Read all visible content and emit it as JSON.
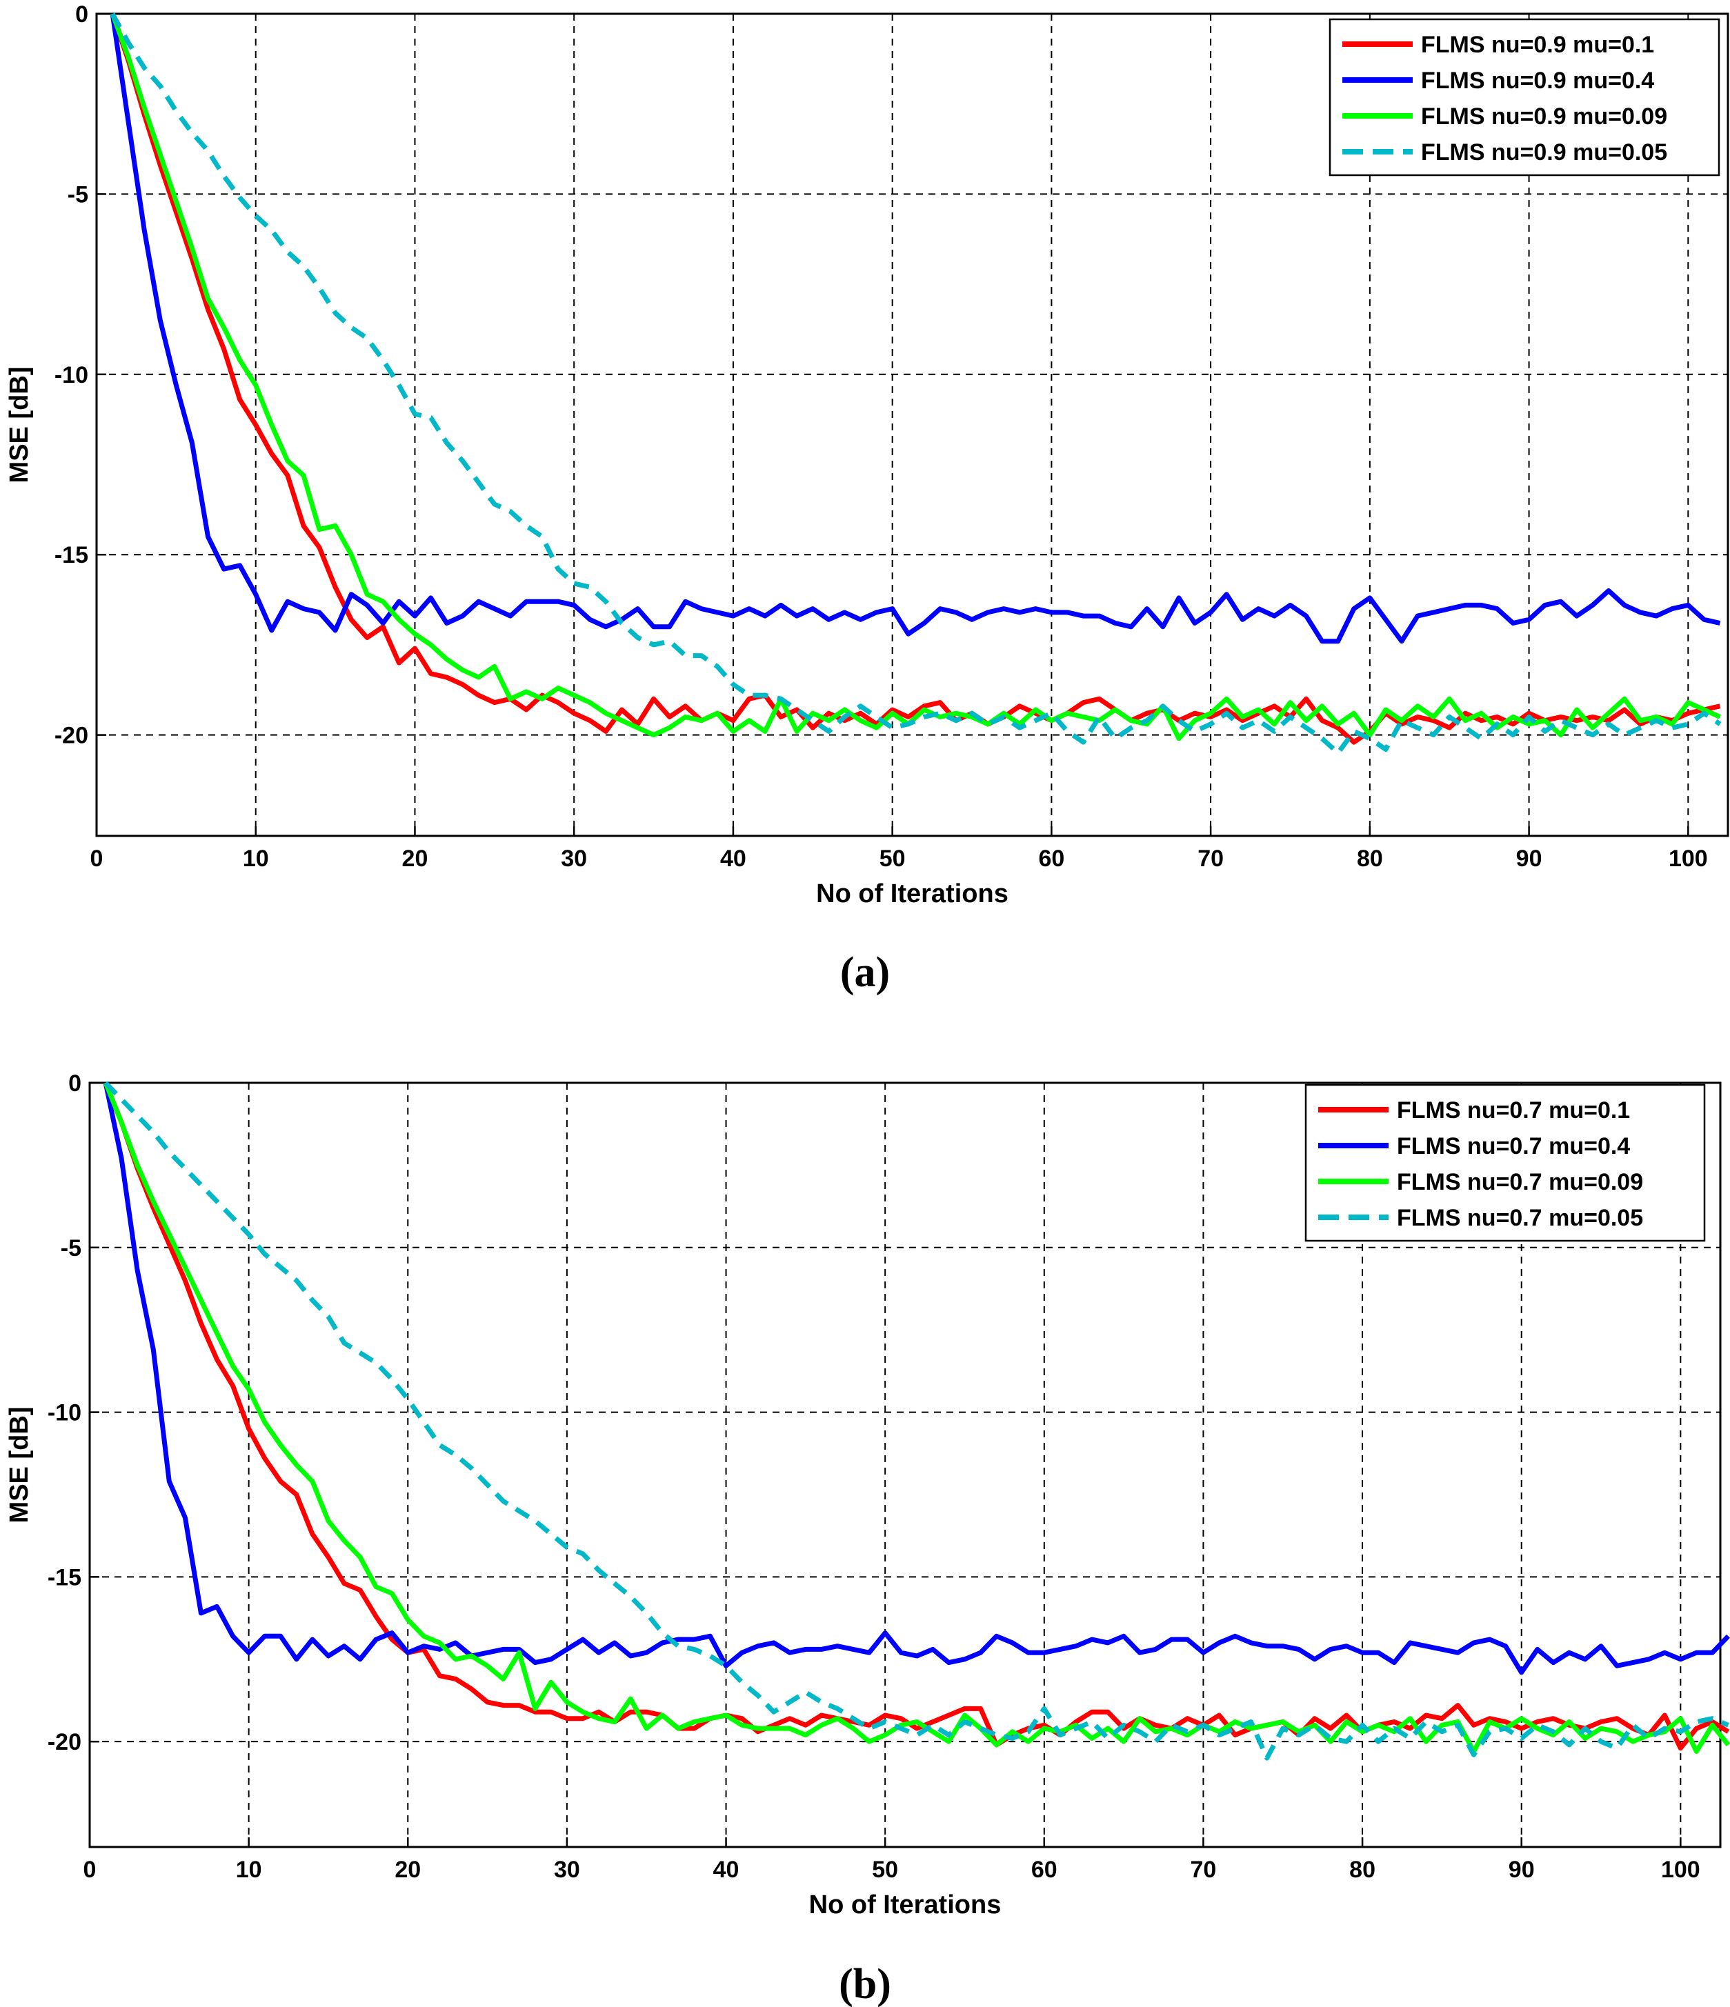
{
  "chart_data": [
    {
      "type": "line",
      "panel": "(a)",
      "caption": "(a)",
      "title": "",
      "xlabel": "No of Iterations",
      "ylabel": "MSE [dB]",
      "xlim": [
        0,
        102.5
      ],
      "ylim": [
        -22.8,
        0
      ],
      "xticks": [
        0,
        10,
        20,
        30,
        40,
        50,
        60,
        70,
        80,
        90,
        100
      ],
      "yticks": [
        0,
        -5,
        -10,
        -15,
        -20
      ],
      "grid": true,
      "legend_position": "top-right",
      "series": [
        {
          "name": "FLMS nu=0.9 mu=0.1",
          "color": "#ff0000",
          "dash": "solid",
          "values": [
            0.0,
            -1.3,
            -2.8,
            -4.2,
            -5.5,
            -6.8,
            -8.2,
            -9.3,
            -10.7,
            -11.4,
            -12.2,
            -12.8,
            -14.2,
            -14.8,
            -15.9,
            -16.8,
            -17.3,
            -17.0,
            -18.0,
            -17.6,
            -18.3,
            -18.4,
            -18.6,
            -18.9,
            -19.1,
            -19.0,
            -19.3,
            -18.9,
            -19.1,
            -19.4,
            -19.6,
            -19.9,
            -19.3,
            -19.7,
            -19.0,
            -19.5,
            -19.2,
            -19.6,
            -19.4,
            -19.6,
            -19.0,
            -18.9,
            -19.5,
            -19.3,
            -19.8,
            -19.4,
            -19.6,
            -19.4,
            -19.7,
            -19.3,
            -19.5,
            -19.2,
            -19.1,
            -19.6,
            -19.4,
            -19.7,
            -19.5,
            -19.2,
            -19.4,
            -19.6,
            -19.4,
            -19.1,
            -19.0,
            -19.3,
            -19.6,
            -19.4,
            -19.3,
            -19.6,
            -19.4,
            -19.5,
            -19.3,
            -19.6,
            -19.4,
            -19.2,
            -19.5,
            -19.0,
            -19.6,
            -19.8,
            -20.2,
            -19.9,
            -19.4,
            -19.7,
            -19.5,
            -19.6,
            -19.8,
            -19.4,
            -19.6,
            -19.5,
            -19.7,
            -19.4,
            -19.6,
            -19.5,
            -19.6,
            -19.5,
            -19.6,
            -19.3,
            -19.7,
            -19.5,
            -19.6,
            -19.4,
            -19.3,
            -19.2
          ]
        },
        {
          "name": "FLMS nu=0.9 mu=0.4",
          "color": "#0000ff",
          "dash": "solid",
          "values": [
            0.0,
            -3.0,
            -6.0,
            -8.5,
            -10.3,
            -11.9,
            -14.5,
            -15.4,
            -15.3,
            -16.1,
            -17.1,
            -16.3,
            -16.5,
            -16.6,
            -17.1,
            -16.1,
            -16.4,
            -16.9,
            -16.3,
            -16.7,
            -16.2,
            -16.9,
            -16.7,
            -16.3,
            -16.5,
            -16.7,
            -16.3,
            -16.3,
            -16.3,
            -16.4,
            -16.8,
            -17.0,
            -16.8,
            -16.5,
            -17.0,
            -17.0,
            -16.3,
            -16.5,
            -16.6,
            -16.7,
            -16.5,
            -16.7,
            -16.4,
            -16.7,
            -16.5,
            -16.8,
            -16.6,
            -16.8,
            -16.6,
            -16.5,
            -17.2,
            -16.9,
            -16.5,
            -16.6,
            -16.8,
            -16.6,
            -16.5,
            -16.6,
            -16.5,
            -16.6,
            -16.6,
            -16.7,
            -16.7,
            -16.9,
            -17.0,
            -16.5,
            -17.0,
            -16.2,
            -16.9,
            -16.6,
            -16.1,
            -16.8,
            -16.5,
            -16.7,
            -16.4,
            -16.7,
            -17.4,
            -17.4,
            -16.5,
            -16.2,
            -16.8,
            -17.4,
            -16.7,
            -16.6,
            -16.5,
            -16.4,
            -16.4,
            -16.5,
            -16.9,
            -16.8,
            -16.4,
            -16.3,
            -16.7,
            -16.4,
            -16.0,
            -16.4,
            -16.6,
            -16.7,
            -16.5,
            -16.4,
            -16.8,
            -16.9
          ]
        },
        {
          "name": "FLMS nu=0.9 mu=0.09",
          "color": "#00ff00",
          "dash": "solid",
          "values": [
            0.0,
            -1.2,
            -2.6,
            -3.9,
            -5.2,
            -6.5,
            -7.9,
            -8.7,
            -9.6,
            -10.3,
            -11.4,
            -12.4,
            -12.8,
            -14.3,
            -14.2,
            -15.0,
            -16.1,
            -16.3,
            -16.8,
            -17.2,
            -17.5,
            -17.9,
            -18.2,
            -18.4,
            -18.1,
            -19.0,
            -18.8,
            -19.0,
            -18.7,
            -18.9,
            -19.1,
            -19.4,
            -19.6,
            -19.8,
            -20.0,
            -19.8,
            -19.5,
            -19.6,
            -19.4,
            -19.9,
            -19.6,
            -19.9,
            -19.0,
            -19.9,
            -19.4,
            -19.6,
            -19.3,
            -19.6,
            -19.8,
            -19.4,
            -19.7,
            -19.3,
            -19.5,
            -19.4,
            -19.5,
            -19.7,
            -19.4,
            -19.7,
            -19.3,
            -19.6,
            -19.4,
            -19.5,
            -19.6,
            -19.3,
            -19.6,
            -19.7,
            -19.2,
            -20.1,
            -19.6,
            -19.4,
            -19.0,
            -19.5,
            -19.3,
            -19.7,
            -19.1,
            -19.6,
            -19.2,
            -19.7,
            -19.4,
            -20.0,
            -19.3,
            -19.6,
            -19.2,
            -19.5,
            -19.0,
            -19.6,
            -19.4,
            -19.8,
            -19.5,
            -19.7,
            -19.6,
            -20.0,
            -19.3,
            -19.8,
            -19.4,
            -19.0,
            -19.6,
            -19.5,
            -19.7,
            -19.1,
            -19.3,
            -19.5
          ]
        },
        {
          "name": "FLMS nu=0.9 mu=0.05",
          "color": "#00b8c8",
          "dash": "dashed",
          "values": [
            0.0,
            -0.8,
            -1.5,
            -2.0,
            -2.7,
            -3.3,
            -3.8,
            -4.5,
            -5.1,
            -5.6,
            -6.0,
            -6.6,
            -7.0,
            -7.6,
            -8.3,
            -8.7,
            -9.0,
            -9.6,
            -10.3,
            -11.1,
            -11.2,
            -11.9,
            -12.4,
            -13.0,
            -13.6,
            -13.8,
            -14.2,
            -14.5,
            -15.4,
            -15.8,
            -15.9,
            -16.3,
            -16.9,
            -17.3,
            -17.5,
            -17.4,
            -17.8,
            -17.8,
            -18.1,
            -18.6,
            -18.9,
            -18.9,
            -19.0,
            -19.3,
            -19.6,
            -19.9,
            -19.5,
            -19.2,
            -19.5,
            -19.8,
            -19.7,
            -19.5,
            -19.4,
            -19.6,
            -19.4,
            -19.7,
            -19.5,
            -19.8,
            -19.6,
            -19.4,
            -19.9,
            -20.2,
            -19.5,
            -20.1,
            -19.8,
            -19.6,
            -19.2,
            -19.6,
            -19.9,
            -19.7,
            -19.4,
            -19.8,
            -19.6,
            -19.9,
            -19.5,
            -19.8,
            -20.1,
            -20.5,
            -19.9,
            -20.1,
            -20.4,
            -19.6,
            -19.8,
            -20.0,
            -19.5,
            -19.8,
            -20.1,
            -19.7,
            -20.0,
            -19.5,
            -19.9,
            -19.6,
            -19.8,
            -20.0,
            -19.7,
            -20.0,
            -19.8,
            -19.6,
            -19.8,
            -19.7,
            -19.4,
            -19.7
          ]
        }
      ]
    },
    {
      "type": "line",
      "panel": "(b)",
      "caption": "(b)",
      "title": "",
      "xlabel": "No of Iterations",
      "ylabel": "MSE [dB]",
      "xlim": [
        0,
        102.5
      ],
      "ylim": [
        -23.2,
        0
      ],
      "xticks": [
        0,
        10,
        20,
        30,
        40,
        50,
        60,
        70,
        80,
        90,
        100
      ],
      "yticks": [
        0,
        -5,
        -10,
        -15,
        -20
      ],
      "grid": true,
      "legend_position": "top-right",
      "series": [
        {
          "name": "FLMS nu=0.7 mu=0.1",
          "color": "#ff0000",
          "dash": "solid",
          "values": [
            0.0,
            -1.2,
            -2.6,
            -3.8,
            -4.9,
            -6.0,
            -7.3,
            -8.4,
            -9.2,
            -10.5,
            -11.4,
            -12.1,
            -12.5,
            -13.7,
            -14.4,
            -15.2,
            -15.4,
            -16.2,
            -16.9,
            -17.3,
            -17.2,
            -18.0,
            -18.1,
            -18.4,
            -18.8,
            -18.9,
            -18.9,
            -19.1,
            -19.1,
            -19.3,
            -19.3,
            -19.1,
            -19.4,
            -19.1,
            -19.1,
            -19.2,
            -19.6,
            -19.6,
            -19.3,
            -19.2,
            -19.3,
            -19.7,
            -19.5,
            -19.3,
            -19.5,
            -19.2,
            -19.3,
            -19.4,
            -19.5,
            -19.2,
            -19.3,
            -19.6,
            -19.4,
            -19.2,
            -19.0,
            -19.0,
            -20.1,
            -19.8,
            -19.6,
            -19.5,
            -19.8,
            -19.4,
            -19.1,
            -19.1,
            -19.6,
            -19.3,
            -19.5,
            -19.6,
            -19.3,
            -19.5,
            -19.2,
            -19.8,
            -19.6,
            -19.5,
            -19.4,
            -19.8,
            -19.3,
            -19.6,
            -19.2,
            -19.7,
            -19.5,
            -19.4,
            -19.6,
            -19.2,
            -19.3,
            -18.9,
            -19.5,
            -19.3,
            -19.4,
            -19.6,
            -19.4,
            -19.3,
            -19.5,
            -19.6,
            -19.4,
            -19.3,
            -19.6,
            -19.8,
            -19.2,
            -20.2,
            -19.6,
            -19.4,
            -19.7
          ]
        },
        {
          "name": "FLMS nu=0.7 mu=0.4",
          "color": "#0000ff",
          "dash": "solid",
          "values": [
            0.0,
            -2.3,
            -5.7,
            -8.1,
            -12.1,
            -13.2,
            -16.1,
            -15.9,
            -16.8,
            -17.3,
            -16.8,
            -16.8,
            -17.5,
            -16.9,
            -17.4,
            -17.1,
            -17.5,
            -16.9,
            -16.7,
            -17.3,
            -17.1,
            -17.2,
            -17.0,
            -17.4,
            -17.3,
            -17.2,
            -17.2,
            -17.6,
            -17.5,
            -17.2,
            -16.9,
            -17.3,
            -17.0,
            -17.4,
            -17.3,
            -17.0,
            -16.9,
            -16.9,
            -16.8,
            -17.7,
            -17.3,
            -17.1,
            -17.0,
            -17.3,
            -17.2,
            -17.2,
            -17.1,
            -17.2,
            -17.3,
            -16.7,
            -17.3,
            -17.4,
            -17.2,
            -17.6,
            -17.5,
            -17.3,
            -16.8,
            -17.0,
            -17.3,
            -17.3,
            -17.2,
            -17.1,
            -16.9,
            -17.0,
            -16.8,
            -17.3,
            -17.2,
            -16.9,
            -16.9,
            -17.3,
            -17.0,
            -16.8,
            -17.0,
            -17.1,
            -17.1,
            -17.2,
            -17.5,
            -17.2,
            -17.1,
            -17.3,
            -17.3,
            -17.6,
            -17.0,
            -17.1,
            -17.2,
            -17.3,
            -17.0,
            -16.9,
            -17.1,
            -17.9,
            -17.2,
            -17.6,
            -17.3,
            -17.5,
            -17.1,
            -17.7,
            -17.6,
            -17.5,
            -17.3,
            -17.5,
            -17.3,
            -17.3,
            -16.8
          ]
        },
        {
          "name": "FLMS nu=0.7 mu=0.09",
          "color": "#00ff00",
          "dash": "solid",
          "values": [
            0.0,
            -1.2,
            -2.5,
            -3.6,
            -4.6,
            -5.6,
            -6.6,
            -7.6,
            -8.6,
            -9.3,
            -10.3,
            -11.0,
            -11.6,
            -12.1,
            -13.3,
            -13.9,
            -14.4,
            -15.3,
            -15.5,
            -16.3,
            -16.8,
            -17.0,
            -17.5,
            -17.4,
            -17.7,
            -18.1,
            -17.3,
            -19.0,
            -18.2,
            -18.8,
            -19.1,
            -19.3,
            -19.4,
            -18.7,
            -19.6,
            -19.2,
            -19.6,
            -19.4,
            -19.3,
            -19.2,
            -19.5,
            -19.6,
            -19.6,
            -19.6,
            -19.8,
            -19.5,
            -19.3,
            -19.6,
            -20.0,
            -19.8,
            -19.5,
            -19.4,
            -19.7,
            -20.0,
            -19.2,
            -19.6,
            -20.1,
            -19.7,
            -20.0,
            -19.6,
            -19.7,
            -19.5,
            -19.9,
            -19.6,
            -20.0,
            -19.3,
            -19.7,
            -19.6,
            -19.8,
            -19.5,
            -19.7,
            -19.4,
            -19.6,
            -19.5,
            -19.4,
            -19.7,
            -19.5,
            -20.0,
            -19.4,
            -19.7,
            -19.5,
            -19.7,
            -19.3,
            -20.0,
            -19.5,
            -19.4,
            -20.3,
            -19.4,
            -19.6,
            -19.3,
            -19.6,
            -19.8,
            -19.4,
            -19.9,
            -19.6,
            -19.7,
            -20.0,
            -19.8,
            -19.7,
            -19.3,
            -20.3,
            -19.5,
            -20.1
          ]
        },
        {
          "name": "FLMS nu=0.7 mu=0.05",
          "color": "#00b8c8",
          "dash": "dashed",
          "values": [
            0.0,
            -0.5,
            -1.0,
            -1.5,
            -2.1,
            -2.6,
            -3.1,
            -3.6,
            -4.1,
            -4.6,
            -5.2,
            -5.6,
            -6.0,
            -6.6,
            -7.1,
            -7.9,
            -8.2,
            -8.5,
            -9.0,
            -9.6,
            -10.3,
            -11.0,
            -11.3,
            -11.7,
            -12.2,
            -12.7,
            -13.0,
            -13.3,
            -13.7,
            -14.1,
            -14.3,
            -14.8,
            -15.2,
            -15.6,
            -16.1,
            -16.7,
            -17.1,
            -17.2,
            -17.4,
            -17.7,
            -18.2,
            -18.6,
            -19.1,
            -18.8,
            -18.5,
            -18.8,
            -19.0,
            -19.3,
            -19.6,
            -19.4,
            -19.6,
            -19.8,
            -19.5,
            -19.8,
            -19.4,
            -19.6,
            -19.8,
            -19.9,
            -19.7,
            -19.0,
            -19.8,
            -19.6,
            -19.4,
            -19.9,
            -19.5,
            -19.7,
            -20.0,
            -19.5,
            -19.7,
            -19.5,
            -19.8,
            -19.6,
            -19.4,
            -20.5,
            -19.6,
            -19.8,
            -19.5,
            -19.9,
            -20.0,
            -19.5,
            -20.0,
            -19.6,
            -19.9,
            -19.4,
            -19.7,
            -19.5,
            -20.4,
            -19.7,
            -19.6,
            -19.9,
            -19.5,
            -19.7,
            -20.1,
            -19.6,
            -20.0,
            -20.2,
            -19.5,
            -19.9,
            -19.6,
            -19.7,
            -19.4,
            -19.3,
            -19.5
          ]
        }
      ]
    }
  ]
}
